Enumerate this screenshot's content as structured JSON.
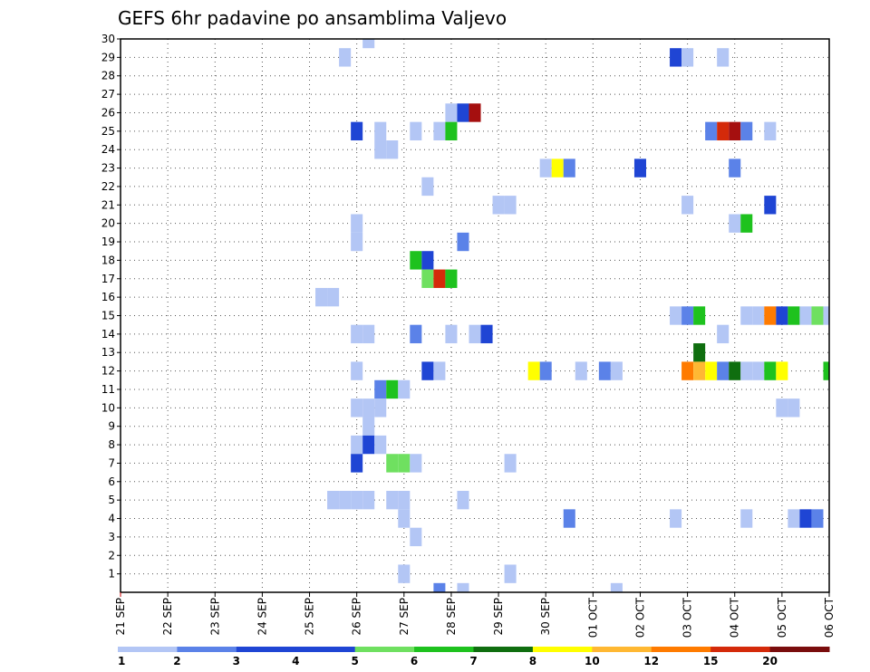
{
  "chart_data": {
    "type": "heatmap",
    "title": "GEFS 6hr padavine po ansamblima Valjevo",
    "xlabel": "",
    "ylabel": "",
    "x_tick_labels": [
      "21 SEP",
      "22 SEP",
      "23 SEP",
      "24 SEP",
      "25 SEP",
      "26 SEP",
      "27 SEP",
      "28 SEP",
      "29 SEP",
      "30 SEP",
      "01 OCT",
      "02 OCT",
      "03 OCT",
      "04 OCT",
      "05 OCT",
      "06 OCT"
    ],
    "x_range_steps": [
      0,
      60
    ],
    "y_tick_labels": [
      "1",
      "2",
      "3",
      "4",
      "5",
      "6",
      "7",
      "8",
      "9",
      "10",
      "11",
      "12",
      "13",
      "14",
      "15",
      "16",
      "17",
      "18",
      "19",
      "20",
      "21",
      "22",
      "23",
      "24",
      "25",
      "26",
      "27",
      "28",
      "29",
      "30"
    ],
    "y_range": [
      0,
      30
    ],
    "grid": true,
    "legend": {
      "placement": "bottom",
      "labels": [
        "1",
        "2",
        "3",
        "4",
        "5",
        "6",
        "7",
        "8",
        "10",
        "12",
        "15",
        "20"
      ],
      "colors": [
        "#b3c6f5",
        "#5b82e8",
        "#1f45d4",
        "#1f45d4",
        "#6fe060",
        "#1ec21e",
        "#0f6e0f",
        "#ffff00",
        "#ffb833",
        "#ff7b00",
        "#d42a0a",
        "#7a0d0d"
      ]
    },
    "class_colors": {
      "1": "#b3c6f5",
      "2": "#5b82e8",
      "3": "#1f45d4",
      "4": "#6fe060",
      "5": "#1ec21e",
      "6": "#0f6e0f",
      "7": "#ffff00",
      "8": "#ffb833",
      "9": "#ff7b00",
      "10": "#d42a0a",
      "11": "#a50f0f"
    },
    "cells_note": "each cell: [time_step (6h steps from 21 SEP 00Z), ensemble_member, precip_class]",
    "cells": [
      [
        21,
        30,
        1
      ],
      [
        19,
        29,
        1
      ],
      [
        47,
        29,
        3
      ],
      [
        48,
        29,
        1
      ],
      [
        51,
        29,
        1
      ],
      [
        28,
        26,
        1
      ],
      [
        29,
        26,
        3
      ],
      [
        30,
        26,
        11
      ],
      [
        20,
        25,
        3
      ],
      [
        22,
        25,
        1
      ],
      [
        25,
        25,
        1
      ],
      [
        27,
        25,
        1
      ],
      [
        28,
        25,
        5
      ],
      [
        50,
        25,
        2
      ],
      [
        51,
        25,
        10
      ],
      [
        52,
        25,
        11
      ],
      [
        53,
        25,
        2
      ],
      [
        55,
        25,
        1
      ],
      [
        22,
        24,
        1
      ],
      [
        23,
        24,
        1
      ],
      [
        36,
        23,
        1
      ],
      [
        37,
        23,
        7
      ],
      [
        38,
        23,
        2
      ],
      [
        44,
        23,
        3
      ],
      [
        52,
        23,
        2
      ],
      [
        26,
        22,
        1
      ],
      [
        32,
        21,
        1
      ],
      [
        33,
        21,
        1
      ],
      [
        48,
        21,
        1
      ],
      [
        55,
        21,
        3
      ],
      [
        20,
        20,
        1
      ],
      [
        52,
        20,
        1
      ],
      [
        53,
        20,
        5
      ],
      [
        20,
        19,
        1
      ],
      [
        29,
        19,
        2
      ],
      [
        25,
        18,
        5
      ],
      [
        26,
        18,
        3
      ],
      [
        26,
        17,
        4
      ],
      [
        27,
        17,
        10
      ],
      [
        28,
        17,
        5
      ],
      [
        17,
        16,
        1
      ],
      [
        18,
        16,
        1
      ],
      [
        47,
        15,
        1
      ],
      [
        48,
        15,
        2
      ],
      [
        49,
        15,
        5
      ],
      [
        53,
        15,
        1
      ],
      [
        54,
        15,
        1
      ],
      [
        55,
        15,
        9
      ],
      [
        56,
        15,
        3
      ],
      [
        57,
        15,
        5
      ],
      [
        58,
        15,
        1
      ],
      [
        59,
        15,
        4
      ],
      [
        60,
        15,
        1
      ],
      [
        20,
        14,
        1
      ],
      [
        21,
        14,
        1
      ],
      [
        25,
        14,
        2
      ],
      [
        28,
        14,
        1
      ],
      [
        30,
        14,
        1
      ],
      [
        31,
        14,
        3
      ],
      [
        51,
        14,
        1
      ],
      [
        49,
        13,
        6
      ],
      [
        20,
        12,
        1
      ],
      [
        26,
        12,
        3
      ],
      [
        27,
        12,
        1
      ],
      [
        35,
        12,
        7
      ],
      [
        36,
        12,
        2
      ],
      [
        39,
        12,
        1
      ],
      [
        41,
        12,
        2
      ],
      [
        42,
        12,
        1
      ],
      [
        48,
        12,
        9
      ],
      [
        49,
        12,
        8
      ],
      [
        50,
        12,
        7
      ],
      [
        51,
        12,
        2
      ],
      [
        52,
        12,
        6
      ],
      [
        53,
        12,
        1
      ],
      [
        54,
        12,
        1
      ],
      [
        55,
        12,
        5
      ],
      [
        56,
        12,
        7
      ],
      [
        60,
        12,
        5
      ],
      [
        22,
        11,
        2
      ],
      [
        23,
        11,
        5
      ],
      [
        24,
        11,
        1
      ],
      [
        20,
        10,
        1
      ],
      [
        21,
        10,
        1
      ],
      [
        22,
        10,
        1
      ],
      [
        56,
        10,
        1
      ],
      [
        57,
        10,
        1
      ],
      [
        21,
        9,
        1
      ],
      [
        20,
        8,
        1
      ],
      [
        21,
        8,
        3
      ],
      [
        22,
        8,
        1
      ],
      [
        20,
        7,
        3
      ],
      [
        23,
        7,
        4
      ],
      [
        24,
        7,
        4
      ],
      [
        25,
        7,
        1
      ],
      [
        33,
        7,
        1
      ],
      [
        18,
        5,
        1
      ],
      [
        19,
        5,
        1
      ],
      [
        20,
        5,
        1
      ],
      [
        21,
        5,
        1
      ],
      [
        23,
        5,
        1
      ],
      [
        24,
        5,
        1
      ],
      [
        29,
        5,
        1
      ],
      [
        24,
        4,
        1
      ],
      [
        38,
        4,
        2
      ],
      [
        47,
        4,
        1
      ],
      [
        53,
        4,
        1
      ],
      [
        57,
        4,
        1
      ],
      [
        58,
        4,
        3
      ],
      [
        59,
        4,
        2
      ],
      [
        25,
        3,
        1
      ],
      [
        24,
        1,
        1
      ],
      [
        33,
        1,
        1
      ],
      [
        27,
        0,
        2
      ],
      [
        29,
        0,
        1
      ],
      [
        42,
        0,
        1
      ]
    ]
  }
}
